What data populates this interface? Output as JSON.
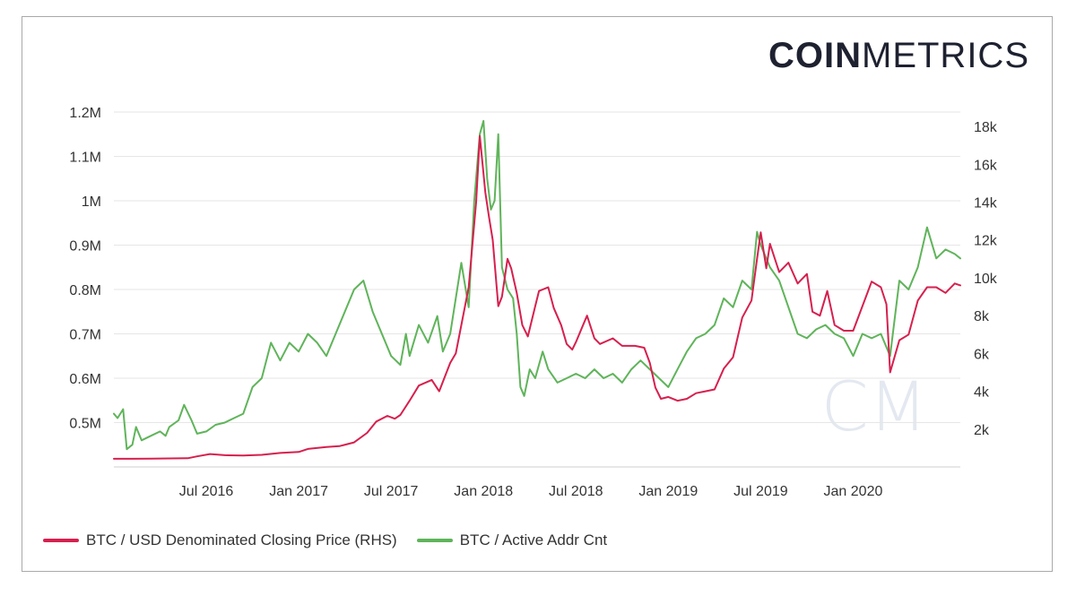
{
  "brand": {
    "bold": "COIN",
    "light": "METRICS",
    "watermark": "CM"
  },
  "colors": {
    "price": "#d6204e",
    "active": "#5fb45a",
    "grid": "#e6e6e6",
    "text": "#333333",
    "watermark": "#e4e8f0"
  },
  "legend": [
    {
      "label": "BTC / USD Denominated Closing Price (RHS)",
      "color": "#d6204e"
    },
    {
      "label": "BTC / Active Addr Cnt",
      "color": "#5fb45a"
    }
  ],
  "chart_data": {
    "type": "line",
    "title": "",
    "x_range": [
      2016.0,
      2020.58
    ],
    "x_ticks": [
      {
        "label": "Jul 2016",
        "t": 2016.5
      },
      {
        "label": "Jan 2017",
        "t": 2017.0
      },
      {
        "label": "Jul 2017",
        "t": 2017.5
      },
      {
        "label": "Jan 2018",
        "t": 2018.0
      },
      {
        "label": "Jul 2018",
        "t": 2018.5
      },
      {
        "label": "Jan 2019",
        "t": 2019.0
      },
      {
        "label": "Jul 2019",
        "t": 2019.5
      },
      {
        "label": "Jan 2020",
        "t": 2020.0
      }
    ],
    "y_left": {
      "range": [
        400000,
        1210000
      ],
      "ticks": [
        {
          "label": "0.5M",
          "v": 500000
        },
        {
          "label": "0.6M",
          "v": 600000
        },
        {
          "label": "0.7M",
          "v": 700000
        },
        {
          "label": "0.8M",
          "v": 800000
        },
        {
          "label": "0.9M",
          "v": 900000
        },
        {
          "label": "1M",
          "v": 1000000
        },
        {
          "label": "1.1M",
          "v": 1100000
        },
        {
          "label": "1.2M",
          "v": 1200000
        }
      ]
    },
    "y_right": {
      "range": [
        0,
        19000
      ],
      "ticks": [
        {
          "label": "2k",
          "v": 2000
        },
        {
          "label": "4k",
          "v": 4000
        },
        {
          "label": "6k",
          "v": 6000
        },
        {
          "label": "8k",
          "v": 8000
        },
        {
          "label": "10k",
          "v": 10000
        },
        {
          "label": "12k",
          "v": 12000
        },
        {
          "label": "14k",
          "v": 14000
        },
        {
          "label": "16k",
          "v": 16000
        },
        {
          "label": "18k",
          "v": 18000
        }
      ]
    },
    "series": [
      {
        "name": "BTC / USD Denominated Closing Price (RHS)",
        "axis": "right",
        "color": "#d6204e",
        "points": [
          [
            2016.0,
            430
          ],
          [
            2016.1,
            430
          ],
          [
            2016.2,
            440
          ],
          [
            2016.3,
            450
          ],
          [
            2016.4,
            460
          ],
          [
            2016.45,
            560
          ],
          [
            2016.52,
            680
          ],
          [
            2016.6,
            620
          ],
          [
            2016.7,
            600
          ],
          [
            2016.8,
            640
          ],
          [
            2016.9,
            740
          ],
          [
            2017.0,
            790
          ],
          [
            2017.05,
            950
          ],
          [
            2017.15,
            1050
          ],
          [
            2017.22,
            1100
          ],
          [
            2017.3,
            1300
          ],
          [
            2017.37,
            1800
          ],
          [
            2017.42,
            2400
          ],
          [
            2017.48,
            2700
          ],
          [
            2017.52,
            2550
          ],
          [
            2017.55,
            2750
          ],
          [
            2017.6,
            3500
          ],
          [
            2017.65,
            4300
          ],
          [
            2017.72,
            4600
          ],
          [
            2017.76,
            4000
          ],
          [
            2017.82,
            5500
          ],
          [
            2017.85,
            6000
          ],
          [
            2017.88,
            7500
          ],
          [
            2017.92,
            9500
          ],
          [
            2017.96,
            14000
          ],
          [
            2017.98,
            17500
          ],
          [
            2018.01,
            14500
          ],
          [
            2018.03,
            13200
          ],
          [
            2018.05,
            12000
          ],
          [
            2018.08,
            8500
          ],
          [
            2018.1,
            9000
          ],
          [
            2018.13,
            11000
          ],
          [
            2018.15,
            10500
          ],
          [
            2018.18,
            9200
          ],
          [
            2018.21,
            7500
          ],
          [
            2018.24,
            6900
          ],
          [
            2018.28,
            8500
          ],
          [
            2018.3,
            9300
          ],
          [
            2018.35,
            9500
          ],
          [
            2018.38,
            8400
          ],
          [
            2018.42,
            7500
          ],
          [
            2018.45,
            6500
          ],
          [
            2018.48,
            6200
          ],
          [
            2018.5,
            6600
          ],
          [
            2018.53,
            7300
          ],
          [
            2018.56,
            8000
          ],
          [
            2018.6,
            6800
          ],
          [
            2018.63,
            6500
          ],
          [
            2018.7,
            6800
          ],
          [
            2018.75,
            6400
          ],
          [
            2018.82,
            6400
          ],
          [
            2018.87,
            6300
          ],
          [
            2018.9,
            5500
          ],
          [
            2018.93,
            4200
          ],
          [
            2018.96,
            3600
          ],
          [
            2019.0,
            3700
          ],
          [
            2019.05,
            3500
          ],
          [
            2019.1,
            3600
          ],
          [
            2019.15,
            3900
          ],
          [
            2019.2,
            4000
          ],
          [
            2019.25,
            4100
          ],
          [
            2019.3,
            5200
          ],
          [
            2019.35,
            5800
          ],
          [
            2019.4,
            7900
          ],
          [
            2019.45,
            8800
          ],
          [
            2019.48,
            11000
          ],
          [
            2019.5,
            12400
          ],
          [
            2019.53,
            10500
          ],
          [
            2019.55,
            11800
          ],
          [
            2019.6,
            10300
          ],
          [
            2019.65,
            10800
          ],
          [
            2019.7,
            9700
          ],
          [
            2019.75,
            10200
          ],
          [
            2019.78,
            8200
          ],
          [
            2019.82,
            8000
          ],
          [
            2019.86,
            9300
          ],
          [
            2019.9,
            7500
          ],
          [
            2019.95,
            7200
          ],
          [
            2020.0,
            7200
          ],
          [
            2020.05,
            8500
          ],
          [
            2020.1,
            9800
          ],
          [
            2020.15,
            9500
          ],
          [
            2020.18,
            8600
          ],
          [
            2020.2,
            5000
          ],
          [
            2020.25,
            6700
          ],
          [
            2020.3,
            7000
          ],
          [
            2020.35,
            8800
          ],
          [
            2020.4,
            9500
          ],
          [
            2020.45,
            9500
          ],
          [
            2020.5,
            9200
          ],
          [
            2020.55,
            9700
          ],
          [
            2020.58,
            9600
          ]
        ]
      },
      {
        "name": "BTC / Active Addr Cnt",
        "axis": "left",
        "color": "#5fb45a",
        "points": [
          [
            2016.0,
            520000
          ],
          [
            2016.02,
            510000
          ],
          [
            2016.05,
            530000
          ],
          [
            2016.07,
            440000
          ],
          [
            2016.1,
            450000
          ],
          [
            2016.12,
            490000
          ],
          [
            2016.15,
            460000
          ],
          [
            2016.2,
            470000
          ],
          [
            2016.25,
            480000
          ],
          [
            2016.28,
            470000
          ],
          [
            2016.3,
            490000
          ],
          [
            2016.35,
            505000
          ],
          [
            2016.38,
            540000
          ],
          [
            2016.42,
            505000
          ],
          [
            2016.45,
            475000
          ],
          [
            2016.5,
            480000
          ],
          [
            2016.55,
            495000
          ],
          [
            2016.6,
            500000
          ],
          [
            2016.65,
            510000
          ],
          [
            2016.7,
            520000
          ],
          [
            2016.75,
            580000
          ],
          [
            2016.8,
            600000
          ],
          [
            2016.85,
            680000
          ],
          [
            2016.9,
            640000
          ],
          [
            2016.95,
            680000
          ],
          [
            2017.0,
            660000
          ],
          [
            2017.05,
            700000
          ],
          [
            2017.1,
            680000
          ],
          [
            2017.15,
            650000
          ],
          [
            2017.2,
            700000
          ],
          [
            2017.25,
            750000
          ],
          [
            2017.3,
            800000
          ],
          [
            2017.35,
            820000
          ],
          [
            2017.4,
            750000
          ],
          [
            2017.45,
            700000
          ],
          [
            2017.5,
            650000
          ],
          [
            2017.55,
            630000
          ],
          [
            2017.58,
            700000
          ],
          [
            2017.6,
            650000
          ],
          [
            2017.65,
            720000
          ],
          [
            2017.7,
            680000
          ],
          [
            2017.75,
            740000
          ],
          [
            2017.78,
            660000
          ],
          [
            2017.82,
            700000
          ],
          [
            2017.85,
            780000
          ],
          [
            2017.88,
            860000
          ],
          [
            2017.92,
            760000
          ],
          [
            2017.95,
            1000000
          ],
          [
            2017.98,
            1150000
          ],
          [
            2018.0,
            1180000
          ],
          [
            2018.02,
            1050000
          ],
          [
            2018.04,
            980000
          ],
          [
            2018.06,
            1000000
          ],
          [
            2018.08,
            1150000
          ],
          [
            2018.1,
            850000
          ],
          [
            2018.13,
            800000
          ],
          [
            2018.16,
            780000
          ],
          [
            2018.18,
            700000
          ],
          [
            2018.2,
            580000
          ],
          [
            2018.22,
            560000
          ],
          [
            2018.25,
            620000
          ],
          [
            2018.28,
            600000
          ],
          [
            2018.32,
            660000
          ],
          [
            2018.35,
            620000
          ],
          [
            2018.4,
            590000
          ],
          [
            2018.45,
            600000
          ],
          [
            2018.5,
            610000
          ],
          [
            2018.55,
            600000
          ],
          [
            2018.6,
            620000
          ],
          [
            2018.65,
            600000
          ],
          [
            2018.7,
            610000
          ],
          [
            2018.75,
            590000
          ],
          [
            2018.8,
            620000
          ],
          [
            2018.85,
            640000
          ],
          [
            2018.9,
            620000
          ],
          [
            2018.95,
            600000
          ],
          [
            2019.0,
            580000
          ],
          [
            2019.05,
            620000
          ],
          [
            2019.1,
            660000
          ],
          [
            2019.15,
            690000
          ],
          [
            2019.2,
            700000
          ],
          [
            2019.25,
            720000
          ],
          [
            2019.3,
            780000
          ],
          [
            2019.35,
            760000
          ],
          [
            2019.4,
            820000
          ],
          [
            2019.45,
            800000
          ],
          [
            2019.48,
            930000
          ],
          [
            2019.5,
            900000
          ],
          [
            2019.55,
            850000
          ],
          [
            2019.6,
            820000
          ],
          [
            2019.65,
            760000
          ],
          [
            2019.7,
            700000
          ],
          [
            2019.75,
            690000
          ],
          [
            2019.8,
            710000
          ],
          [
            2019.85,
            720000
          ],
          [
            2019.9,
            700000
          ],
          [
            2019.95,
            690000
          ],
          [
            2020.0,
            650000
          ],
          [
            2020.05,
            700000
          ],
          [
            2020.1,
            690000
          ],
          [
            2020.15,
            700000
          ],
          [
            2020.2,
            650000
          ],
          [
            2020.25,
            820000
          ],
          [
            2020.3,
            800000
          ],
          [
            2020.35,
            850000
          ],
          [
            2020.4,
            940000
          ],
          [
            2020.45,
            870000
          ],
          [
            2020.5,
            890000
          ],
          [
            2020.55,
            880000
          ],
          [
            2020.58,
            870000
          ]
        ]
      }
    ]
  }
}
